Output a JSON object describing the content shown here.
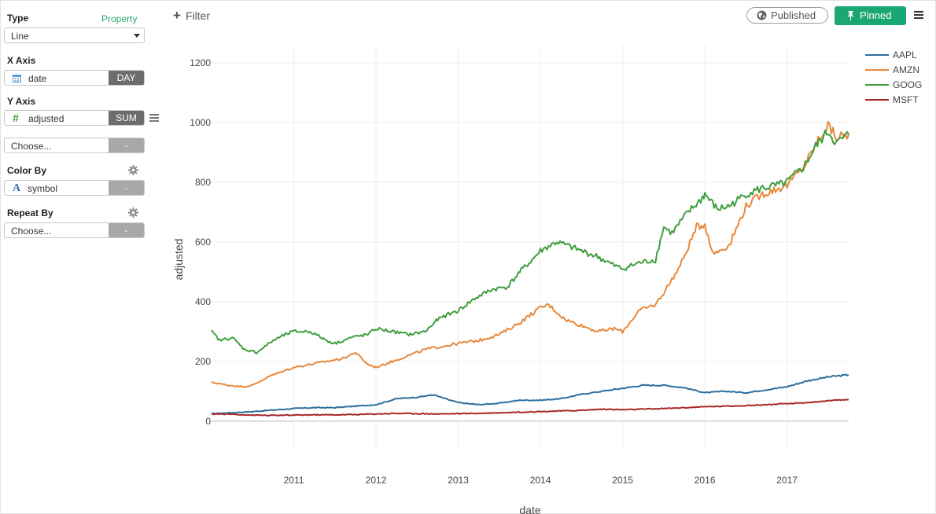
{
  "sidebar": {
    "type": {
      "label": "Type",
      "link": "Property",
      "value": "Line"
    },
    "x_axis": {
      "label": "X Axis",
      "field": "date",
      "unit": "DAY",
      "icon": "calendar-icon"
    },
    "y_axis": {
      "label": "Y Axis",
      "field": "adjusted",
      "agg": "SUM",
      "icon": "hash-icon",
      "extra_placeholder": "Choose...",
      "extra_button": "-"
    },
    "color_by": {
      "label": "Color By",
      "field": "symbol",
      "icon": "text-type-icon",
      "button": "-"
    },
    "repeat_by": {
      "label": "Repeat By",
      "placeholder": "Choose...",
      "button": "-"
    }
  },
  "topbar": {
    "filter_label": "Filter",
    "published_label": "Published",
    "pinned_label": "Pinned"
  },
  "colors": {
    "accent": "#1aa774",
    "link": "#2ca36e"
  },
  "chart_data": {
    "type": "line",
    "xlabel": "date",
    "ylabel": "adjusted",
    "xlim": [
      2010.0,
      2017.75
    ],
    "ylim": [
      -90,
      1260
    ],
    "x_ticks": [
      2011,
      2012,
      2013,
      2014,
      2015,
      2016,
      2017
    ],
    "y_ticks": [
      0,
      200,
      400,
      600,
      800,
      1000,
      1200
    ],
    "grid": true,
    "legend_position": "top-right",
    "series": [
      {
        "name": "AAPL",
        "color": "#2e6f9e",
        "x": [
          2010.0,
          2010.25,
          2010.5,
          2010.75,
          2011.0,
          2011.25,
          2011.5,
          2011.75,
          2012.0,
          2012.25,
          2012.5,
          2012.7,
          2012.9,
          2013.0,
          2013.25,
          2013.5,
          2013.75,
          2014.0,
          2014.25,
          2014.5,
          2014.75,
          2015.0,
          2015.25,
          2015.5,
          2015.75,
          2016.0,
          2016.25,
          2016.5,
          2016.75,
          2017.0,
          2017.25,
          2017.5,
          2017.75
        ],
        "y": [
          25,
          28,
          32,
          37,
          42,
          45,
          45,
          50,
          55,
          75,
          80,
          88,
          70,
          62,
          55,
          60,
          70,
          70,
          75,
          90,
          100,
          110,
          120,
          120,
          112,
          95,
          100,
          95,
          105,
          115,
          135,
          148,
          155
        ]
      },
      {
        "name": "AMZN",
        "color": "#e8883a",
        "x": [
          2010.0,
          2010.2,
          2010.4,
          2010.5,
          2010.7,
          2010.9,
          2011.0,
          2011.2,
          2011.4,
          2011.6,
          2011.75,
          2011.9,
          2012.0,
          2012.2,
          2012.4,
          2012.6,
          2012.8,
          2013.0,
          2013.25,
          2013.5,
          2013.75,
          2014.0,
          2014.1,
          2014.3,
          2014.5,
          2014.7,
          2014.9,
          2015.0,
          2015.2,
          2015.4,
          2015.5,
          2015.7,
          2015.9,
          2016.0,
          2016.1,
          2016.3,
          2016.5,
          2016.7,
          2016.9,
          2017.0,
          2017.2,
          2017.4,
          2017.5,
          2017.6,
          2017.75
        ],
        "y": [
          130,
          120,
          115,
          120,
          150,
          170,
          180,
          190,
          200,
          210,
          230,
          190,
          180,
          200,
          220,
          240,
          250,
          260,
          270,
          290,
          330,
          380,
          390,
          340,
          320,
          300,
          310,
          300,
          370,
          390,
          430,
          520,
          650,
          660,
          560,
          590,
          720,
          760,
          780,
          790,
          850,
          950,
          990,
          950,
          960
        ]
      },
      {
        "name": "GOOG",
        "color": "#3f9e3f",
        "x": [
          2010.0,
          2010.1,
          2010.25,
          2010.4,
          2010.55,
          2010.75,
          2010.9,
          2011.0,
          2011.2,
          2011.4,
          2011.5,
          2011.7,
          2011.9,
          2012.0,
          2012.2,
          2012.4,
          2012.6,
          2012.75,
          2012.9,
          2013.0,
          2013.2,
          2013.4,
          2013.6,
          2013.75,
          2013.9,
          2014.0,
          2014.2,
          2014.3,
          2014.5,
          2014.7,
          2014.9,
          2015.0,
          2015.2,
          2015.4,
          2015.5,
          2015.6,
          2015.8,
          2015.95,
          2016.0,
          2016.15,
          2016.3,
          2016.5,
          2016.7,
          2016.9,
          2017.0,
          2017.2,
          2017.35,
          2017.5,
          2017.6,
          2017.75
        ],
        "y": [
          300,
          270,
          280,
          240,
          230,
          270,
          290,
          300,
          300,
          270,
          260,
          280,
          290,
          310,
          300,
          290,
          300,
          340,
          360,
          370,
          410,
          440,
          450,
          500,
          540,
          570,
          600,
          590,
          570,
          550,
          520,
          510,
          530,
          540,
          650,
          630,
          700,
          740,
          760,
          710,
          720,
          760,
          780,
          790,
          800,
          850,
          920,
          970,
          930,
          960
        ]
      },
      {
        "name": "MSFT",
        "color": "#a82828",
        "x": [
          2010.0,
          2010.25,
          2010.5,
          2010.75,
          2011.0,
          2011.25,
          2011.5,
          2011.75,
          2012.0,
          2012.25,
          2012.5,
          2012.75,
          2013.0,
          2013.25,
          2013.5,
          2013.75,
          2014.0,
          2014.25,
          2014.5,
          2014.75,
          2015.0,
          2015.25,
          2015.5,
          2015.75,
          2016.0,
          2016.25,
          2016.5,
          2016.75,
          2017.0,
          2017.25,
          2017.5,
          2017.75
        ],
        "y": [
          24,
          23,
          20,
          19,
          20,
          21,
          21,
          22,
          24,
          26,
          25,
          24,
          25,
          26,
          28,
          30,
          32,
          34,
          36,
          40,
          38,
          40,
          42,
          45,
          48,
          50,
          52,
          55,
          58,
          62,
          68,
          72
        ]
      }
    ]
  }
}
